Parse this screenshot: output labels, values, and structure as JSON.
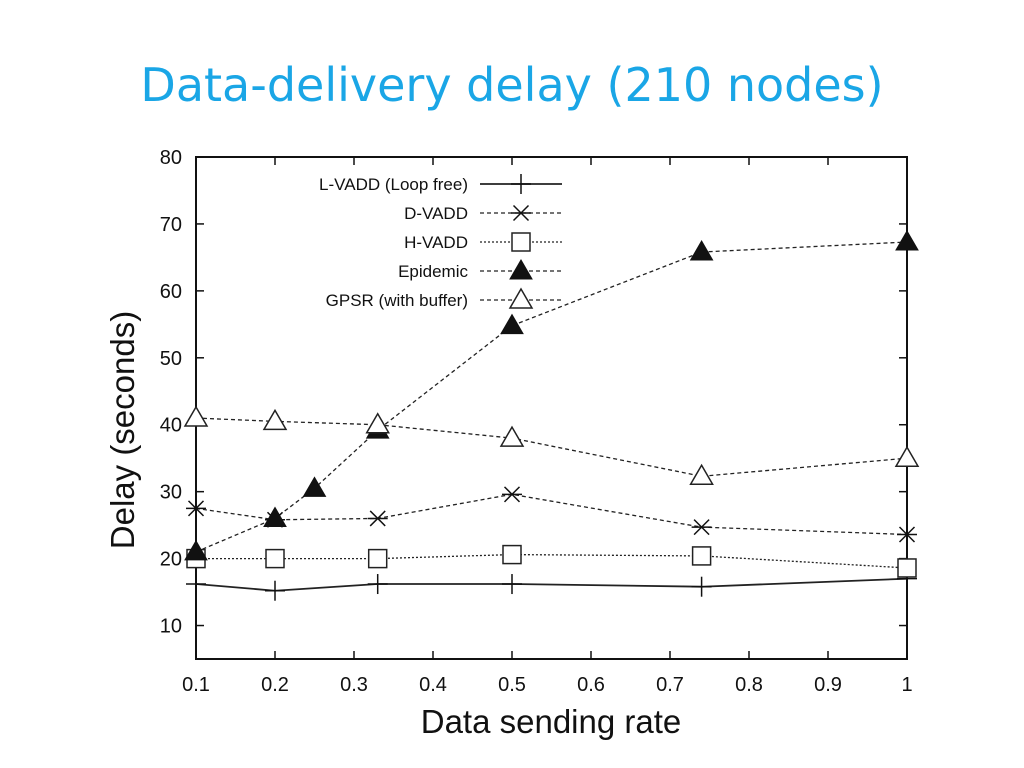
{
  "slide": {
    "title": "Data-delivery delay (210 nodes)"
  },
  "chart_data": {
    "type": "line",
    "xlabel": "Data sending rate",
    "ylabel": "Delay (seconds)",
    "xlim": [
      0.1,
      1
    ],
    "ylim": [
      5,
      80
    ],
    "xticks": [
      "0.1",
      "0.2",
      "0.3",
      "0.4",
      "0.5",
      "0.6",
      "0.7",
      "0.8",
      "0.9",
      "1"
    ],
    "yticks": [
      "10",
      "20",
      "30",
      "40",
      "50",
      "60",
      "70",
      "80"
    ],
    "legend_position": "top-left",
    "series": [
      {
        "name": "L-VADD (Loop free)",
        "marker": "plus",
        "line": "solid",
        "x": [
          0.1,
          0.2,
          0.33,
          0.5,
          0.74,
          1
        ],
        "y": [
          16.2,
          15.2,
          16.2,
          16.2,
          15.8,
          17
        ]
      },
      {
        "name": "D-VADD",
        "marker": "star",
        "line": "dashed",
        "x": [
          0.1,
          0.2,
          0.33,
          0.5,
          0.74,
          1
        ],
        "y": [
          27.5,
          25.8,
          26,
          29.6,
          24.7,
          23.6
        ]
      },
      {
        "name": "H-VADD",
        "marker": "open-square",
        "line": "dotted",
        "x": [
          0.1,
          0.2,
          0.33,
          0.5,
          0.74,
          1
        ],
        "y": [
          20,
          20,
          20,
          20.6,
          20.4,
          18.6
        ]
      },
      {
        "name": "Epidemic",
        "marker": "filled-triangle",
        "line": "dashed",
        "x": [
          0.1,
          0.2,
          0.25,
          0.33,
          0.5,
          0.74,
          1
        ],
        "y": [
          21,
          26,
          30.5,
          39.2,
          54.8,
          65.8,
          67.3
        ]
      },
      {
        "name": "GPSR (with buffer)",
        "marker": "open-triangle",
        "line": "dashed",
        "x": [
          0.1,
          0.2,
          0.33,
          0.5,
          0.74,
          1
        ],
        "y": [
          41,
          40.5,
          40,
          38,
          32.3,
          35
        ]
      }
    ]
  }
}
